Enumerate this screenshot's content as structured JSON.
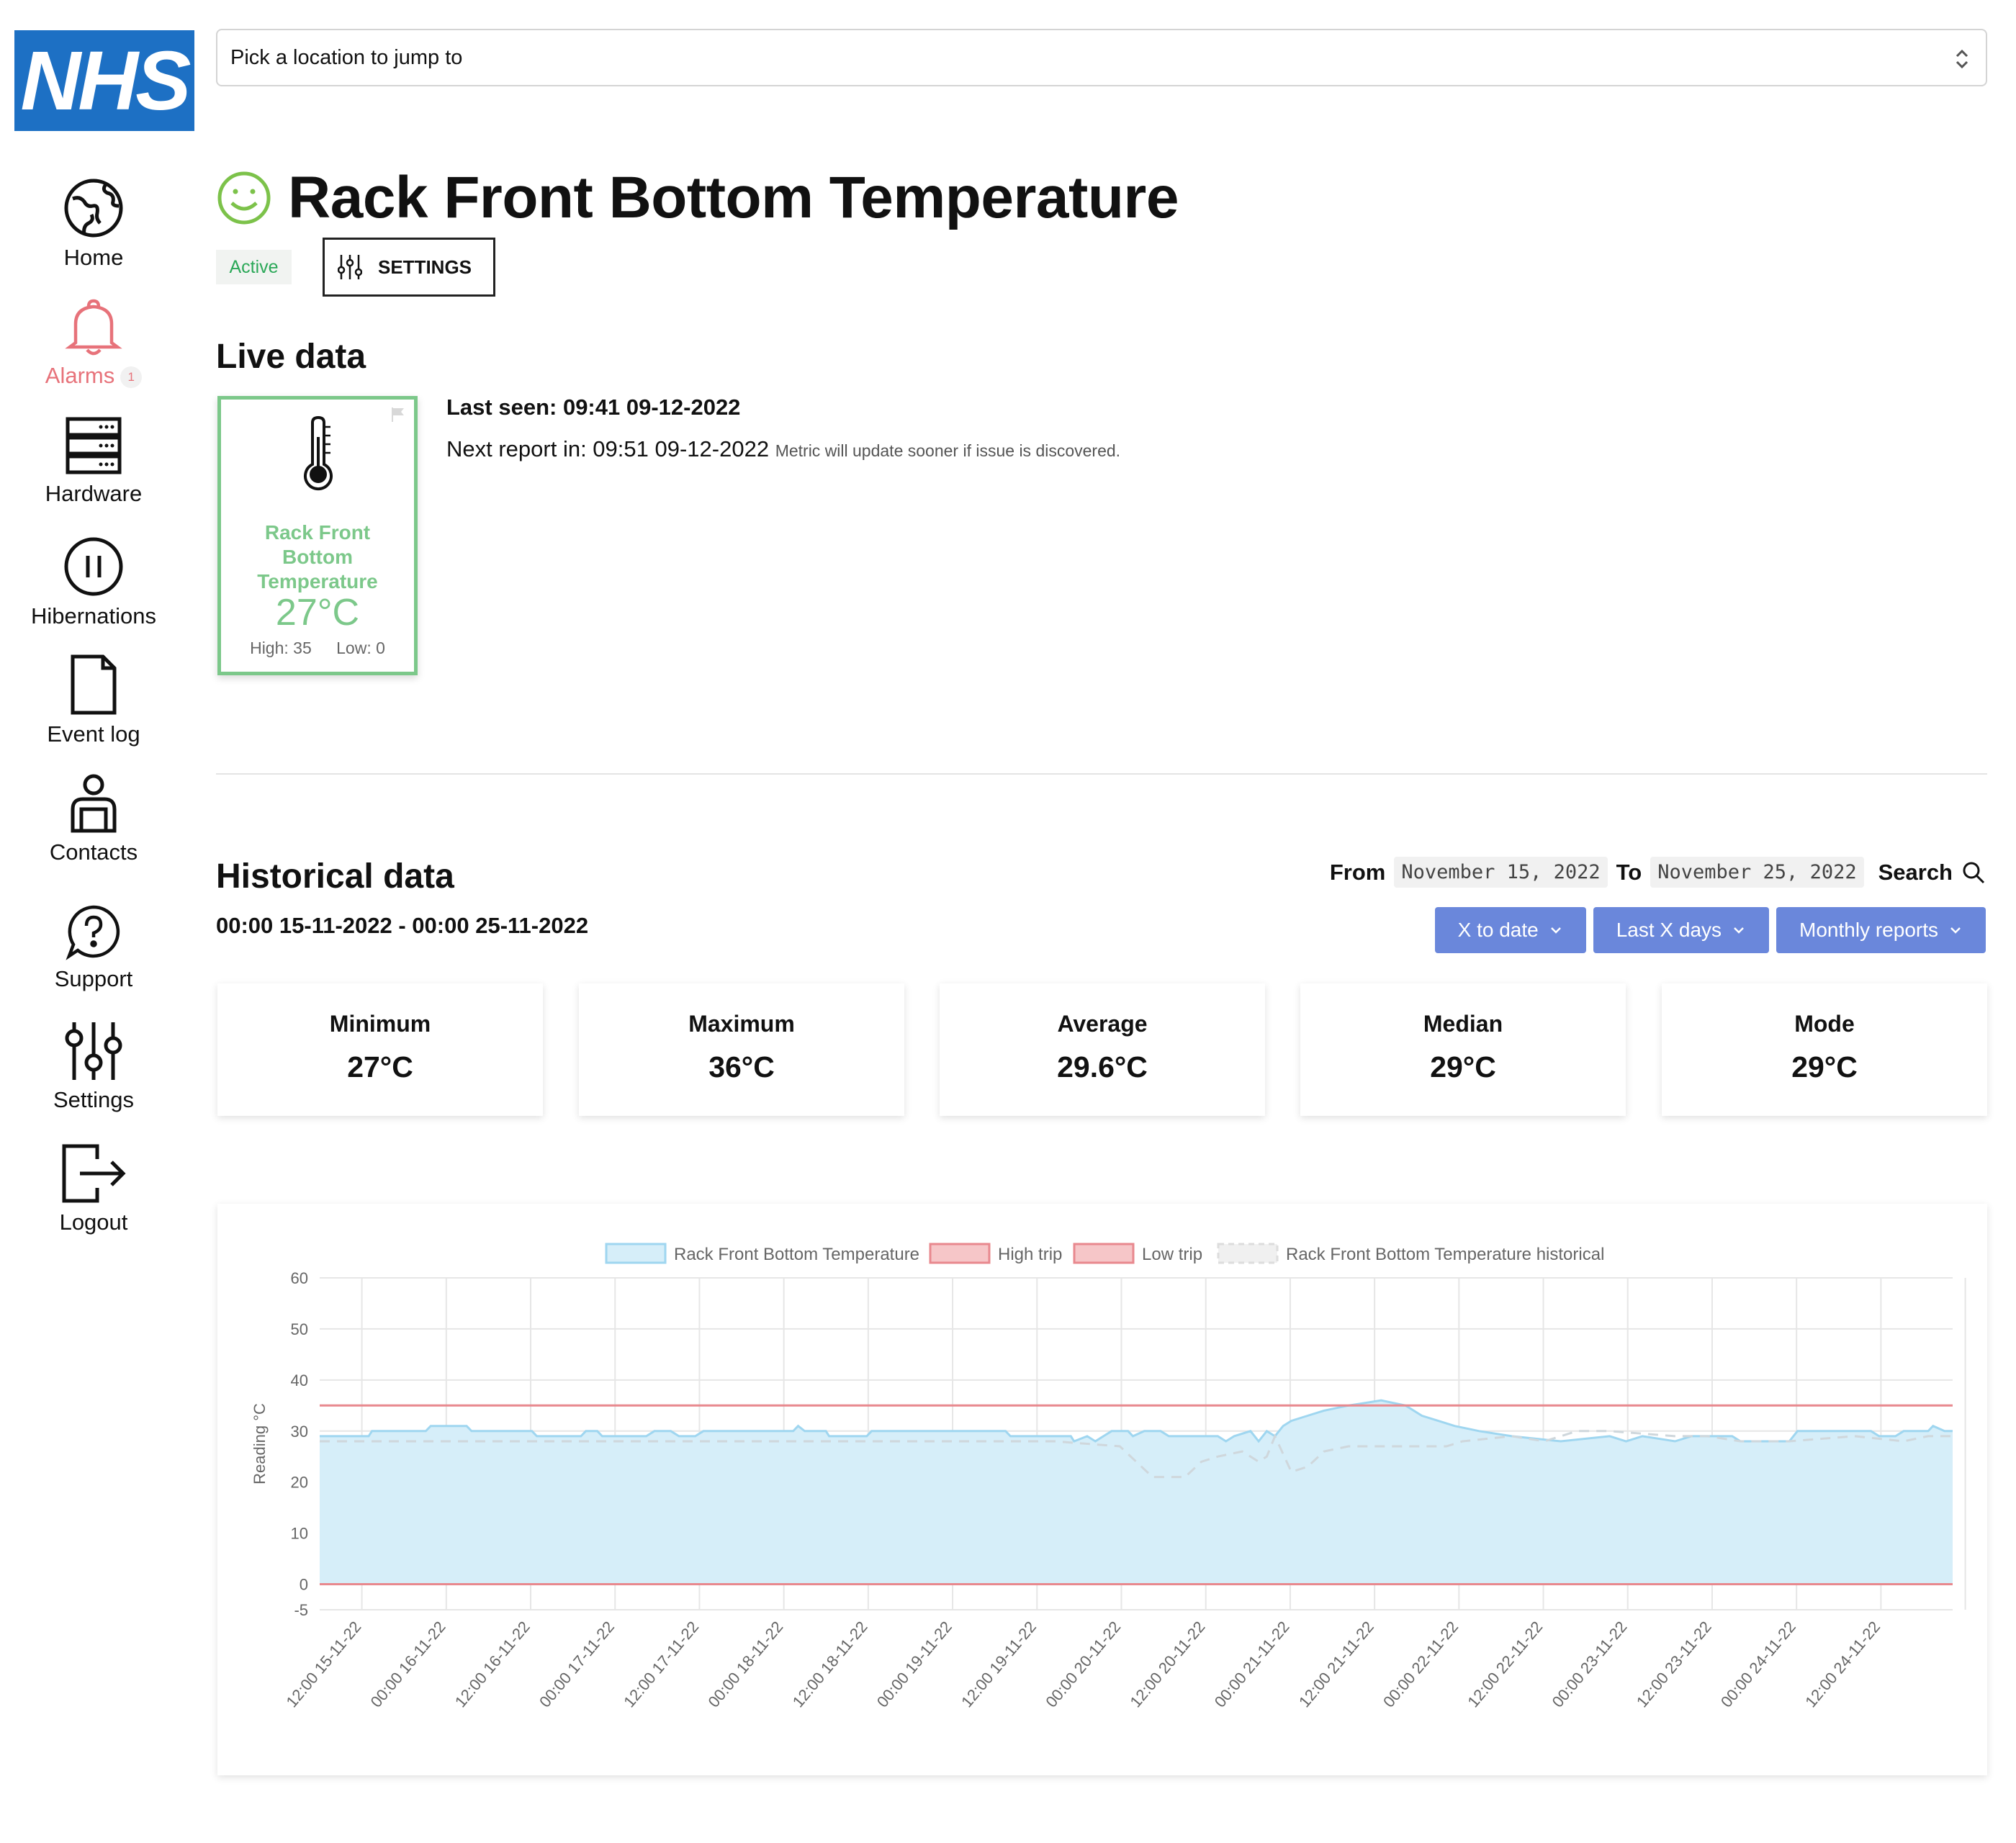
{
  "brand": {
    "logo_text": "NHS",
    "color": "#1d70c4"
  },
  "location_select": {
    "label": "Pick a location to jump to"
  },
  "nav": {
    "home": "Home",
    "alarms": "Alarms",
    "alarms_count": "1",
    "hardware": "Hardware",
    "hibernations": "Hibernations",
    "event_log": "Event log",
    "contacts": "Contacts",
    "support": "Support",
    "settings": "Settings",
    "logout": "Logout"
  },
  "page": {
    "title": "Rack Front Bottom Temperature",
    "status": "Active",
    "status_icon": "smiley-icon",
    "settings_button": "SETTINGS"
  },
  "live": {
    "heading": "Live data",
    "card_name": "Rack Front Bottom Temperature",
    "value": "27°C",
    "high": "High: 35",
    "low": "Low: 0",
    "last_seen": "Last seen: 09:41 09-12-2022",
    "next_report": "Next report in: 09:51 09-12-2022",
    "next_report_note": "Metric will update sooner if issue is discovered."
  },
  "historical": {
    "heading": "Historical data",
    "range": "00:00 15-11-2022 - 00:00 25-11-2022",
    "from_label": "From",
    "from_value": "November 15, 2022",
    "to_label": "To",
    "to_value": "November 25, 2022",
    "search_label": "Search",
    "presets": [
      "X to date",
      "Last X days",
      "Monthly reports"
    ],
    "stats": [
      {
        "label": "Minimum",
        "value": "27°C"
      },
      {
        "label": "Maximum",
        "value": "36°C"
      },
      {
        "label": "Average",
        "value": "29.6°C"
      },
      {
        "label": "Median",
        "value": "29°C"
      },
      {
        "label": "Mode",
        "value": "29°C"
      }
    ]
  },
  "colors": {
    "accent": "#6a87db",
    "ok_green": "#7cc88a",
    "active_green": "#2ba858",
    "alarm_red": "#e7727a",
    "series_fill": "#d6eef9",
    "series_line": "#9fd6f0",
    "trip_line": "#e8888e"
  },
  "chart_data": {
    "type": "area",
    "ylabel": "Reading °C",
    "xlabel": "",
    "ylim": [
      -5,
      60
    ],
    "yticks": [
      60,
      50,
      40,
      30,
      20,
      10,
      0,
      -5
    ],
    "grid": true,
    "legend_position": "top-center",
    "x_labels": [
      "12:00 15-11-22",
      "00:00 16-11-22",
      "12:00 16-11-22",
      "00:00 17-11-22",
      "12:00 17-11-22",
      "00:00 18-11-22",
      "12:00 18-11-22",
      "00:00 19-11-22",
      "12:00 19-11-22",
      "00:00 20-11-22",
      "12:00 20-11-22",
      "00:00 21-11-22",
      "12:00 21-11-22",
      "00:00 22-11-22",
      "12:00 22-11-22",
      "00:00 23-11-22",
      "12:00 23-11-22",
      "00:00 24-11-22",
      "12:00 24-11-22"
    ],
    "x_range_days": [
      0,
      10
    ],
    "series": [
      {
        "name": "Rack Front Bottom Temperature",
        "style": "area",
        "points": [
          [
            0,
            29
          ],
          [
            0.3,
            29
          ],
          [
            0.32,
            30
          ],
          [
            0.65,
            30
          ],
          [
            0.68,
            31
          ],
          [
            0.9,
            31
          ],
          [
            0.93,
            30
          ],
          [
            1.3,
            30
          ],
          [
            1.33,
            29
          ],
          [
            1.6,
            29
          ],
          [
            1.63,
            30
          ],
          [
            1.7,
            30
          ],
          [
            1.73,
            29
          ],
          [
            2.0,
            29
          ],
          [
            2.05,
            30
          ],
          [
            2.15,
            30
          ],
          [
            2.2,
            29
          ],
          [
            2.3,
            29
          ],
          [
            2.35,
            30
          ],
          [
            2.9,
            30
          ],
          [
            2.93,
            31
          ],
          [
            2.97,
            30
          ],
          [
            3.1,
            30
          ],
          [
            3.12,
            29
          ],
          [
            3.35,
            29
          ],
          [
            3.38,
            30
          ],
          [
            4.2,
            30
          ],
          [
            4.23,
            29
          ],
          [
            4.6,
            29
          ],
          [
            4.62,
            28
          ],
          [
            4.7,
            29
          ],
          [
            4.75,
            28
          ],
          [
            4.8,
            29
          ],
          [
            4.85,
            30
          ],
          [
            4.95,
            30
          ],
          [
            4.98,
            29
          ],
          [
            5.05,
            30
          ],
          [
            5.15,
            30
          ],
          [
            5.2,
            29
          ],
          [
            5.5,
            29
          ],
          [
            5.55,
            28
          ],
          [
            5.6,
            29
          ],
          [
            5.7,
            30
          ],
          [
            5.75,
            28
          ],
          [
            5.8,
            30
          ],
          [
            5.85,
            29
          ],
          [
            5.9,
            31
          ],
          [
            5.95,
            32
          ],
          [
            6.05,
            33
          ],
          [
            6.15,
            34
          ],
          [
            6.3,
            35
          ],
          [
            6.5,
            36
          ],
          [
            6.65,
            35
          ],
          [
            6.75,
            33
          ],
          [
            6.85,
            32
          ],
          [
            6.95,
            31
          ],
          [
            7.1,
            30
          ],
          [
            7.3,
            29
          ],
          [
            7.6,
            28
          ],
          [
            7.9,
            29
          ],
          [
            8.0,
            28
          ],
          [
            8.1,
            29
          ],
          [
            8.3,
            28
          ],
          [
            8.4,
            29
          ],
          [
            8.65,
            29
          ],
          [
            8.7,
            28
          ],
          [
            9.0,
            28
          ],
          [
            9.05,
            30
          ],
          [
            9.5,
            30
          ],
          [
            9.55,
            29
          ],
          [
            9.65,
            29
          ],
          [
            9.7,
            30
          ],
          [
            9.85,
            30
          ],
          [
            9.88,
            31
          ],
          [
            9.95,
            30
          ],
          [
            10,
            30
          ]
        ]
      },
      {
        "name": "High trip",
        "style": "line",
        "value": 35
      },
      {
        "name": "Low trip",
        "style": "line",
        "value": 0
      },
      {
        "name": "Rack Front Bottom Temperature historical",
        "style": "dashed",
        "points": [
          [
            0,
            28
          ],
          [
            1.0,
            28
          ],
          [
            1.5,
            28
          ],
          [
            2.0,
            28
          ],
          [
            3.0,
            28
          ],
          [
            4.0,
            28
          ],
          [
            4.5,
            28
          ],
          [
            4.9,
            27
          ],
          [
            5.0,
            24
          ],
          [
            5.1,
            21
          ],
          [
            5.3,
            21
          ],
          [
            5.4,
            24
          ],
          [
            5.5,
            25
          ],
          [
            5.65,
            26
          ],
          [
            5.75,
            24
          ],
          [
            5.8,
            25
          ],
          [
            5.85,
            29
          ],
          [
            5.95,
            22
          ],
          [
            6.05,
            23
          ],
          [
            6.15,
            26
          ],
          [
            6.3,
            27
          ],
          [
            6.6,
            27
          ],
          [
            6.9,
            27
          ],
          [
            7.0,
            28
          ],
          [
            7.3,
            29
          ],
          [
            7.5,
            28
          ],
          [
            7.7,
            30
          ],
          [
            7.9,
            30
          ],
          [
            8.3,
            29
          ],
          [
            8.5,
            29
          ],
          [
            8.7,
            28
          ],
          [
            9.0,
            28
          ],
          [
            9.4,
            29
          ],
          [
            9.7,
            28
          ],
          [
            9.85,
            29
          ],
          [
            10,
            29
          ]
        ]
      }
    ]
  }
}
